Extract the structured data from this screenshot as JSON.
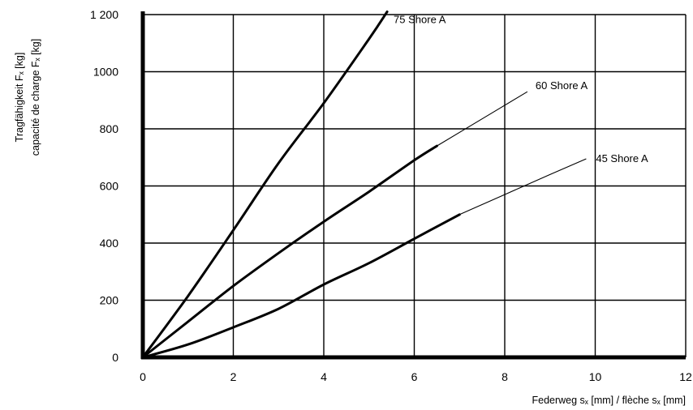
{
  "chart_data": {
    "type": "line",
    "xlabel": "Federweg sₓ [mm] / flèche sₓ [mm]",
    "ylabel_line1": "Tragfähigkeit Fₓ [kg]",
    "ylabel_line2": "capacité de charge Fₓ [kg]",
    "xlim": [
      0,
      12
    ],
    "ylim": [
      0,
      1200
    ],
    "x_ticks": [
      0,
      2,
      4,
      6,
      8,
      10,
      12
    ],
    "x_tick_labels": [
      "0",
      "2",
      "4",
      "6",
      "8",
      "10",
      "12"
    ],
    "y_ticks": [
      0,
      200,
      400,
      600,
      800,
      1000,
      1200
    ],
    "y_tick_labels": [
      "0",
      "200",
      "400",
      "600",
      "800",
      "1000",
      "1 200"
    ],
    "grid": true,
    "series": [
      {
        "name": "75 Shore A",
        "x": [
          0,
          1,
          2,
          3,
          4,
          5,
          5.4
        ],
        "y": [
          0,
          215,
          445,
          680,
          890,
          1115,
          1210
        ],
        "thin_x": [],
        "thin_y": []
      },
      {
        "name": "60 Shore A",
        "x": [
          0,
          1,
          2,
          3,
          4,
          5,
          6,
          6.5
        ],
        "y": [
          0,
          125,
          250,
          365,
          475,
          580,
          690,
          740
        ],
        "thin_x": [
          6.5,
          7.5,
          8.5
        ],
        "thin_y": [
          740,
          835,
          930
        ]
      },
      {
        "name": "45 Shore A",
        "x": [
          0,
          1,
          2,
          3,
          4,
          5,
          6,
          7
        ],
        "y": [
          0,
          45,
          105,
          170,
          255,
          330,
          415,
          500
        ],
        "thin_x": [
          7,
          8,
          9,
          9.8
        ],
        "thin_y": [
          500,
          570,
          640,
          695
        ]
      }
    ]
  }
}
